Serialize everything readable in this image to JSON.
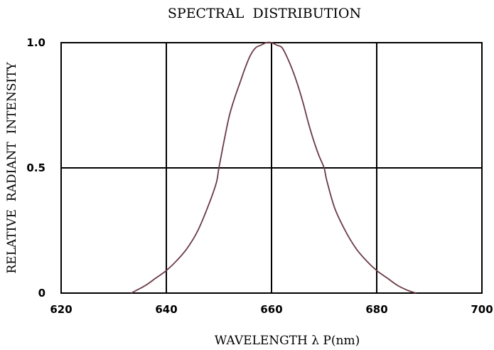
{
  "chart_data": {
    "type": "line",
    "title": "SPECTRAL  DISTRIBUTION",
    "xlabel": "WAVELENGTH λ P(nm)",
    "ylabel": "RELATIVE  RADIANT  INTENSITY",
    "xlim": [
      620,
      700
    ],
    "ylim": [
      0,
      1.0
    ],
    "x_ticks": [
      "620",
      "640",
      "660",
      "680",
      "700"
    ],
    "y_ticks": [
      "0",
      "0.5",
      "1.0"
    ],
    "grid": true,
    "colors": {
      "curve": "#6b3a45",
      "axes": "#000000",
      "grid": "#000000"
    },
    "series": [
      {
        "x": [
          633.3,
          636,
          638,
          640,
          642,
          644,
          646,
          648,
          649.5,
          650,
          651,
          652,
          653,
          654,
          655,
          656,
          657,
          658,
          659,
          660,
          661,
          662,
          663,
          664,
          665,
          666,
          667,
          668,
          669,
          670,
          670.5,
          672,
          674,
          676,
          678,
          680,
          682,
          684,
          686,
          687.5
        ],
        "y": [
          0,
          0.03,
          0.06,
          0.09,
          0.13,
          0.18,
          0.25,
          0.35,
          0.44,
          0.5,
          0.61,
          0.71,
          0.78,
          0.84,
          0.9,
          0.95,
          0.98,
          0.99,
          1.0,
          1.0,
          0.99,
          0.98,
          0.94,
          0.89,
          0.83,
          0.76,
          0.68,
          0.61,
          0.55,
          0.5,
          0.45,
          0.34,
          0.25,
          0.18,
          0.13,
          0.09,
          0.06,
          0.03,
          0.01,
          0
        ]
      }
    ]
  }
}
